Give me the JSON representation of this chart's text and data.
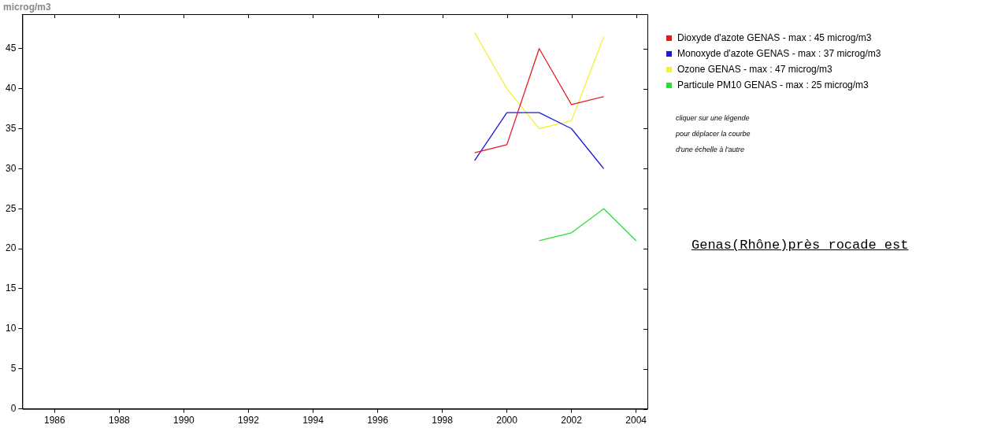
{
  "chart_data": {
    "type": "line",
    "title": "Genas(Rhône)près rocade est",
    "ylabel": "microg/m3",
    "annotations": [
      "cliquer sur une légende",
      "pour déplacer la courbe",
      "d'une échelle à l'autre"
    ],
    "x": [
      1999,
      2000,
      2001,
      2002,
      2003,
      2004
    ],
    "series": [
      {
        "name": "Dioxyde d'azote  GENAS - max : 45 microg/m3",
        "color": "#e8191e",
        "values": [
          32,
          33,
          45,
          38,
          39,
          null
        ]
      },
      {
        "name": "Monoxyde d'azote  GENAS - max : 37 microg/m3",
        "color": "#1a1ad8",
        "values": [
          31,
          37,
          37,
          35,
          30,
          null
        ]
      },
      {
        "name": "Ozone  GENAS - max : 47 microg/m3",
        "color": "#f5f03c",
        "values": [
          47,
          40,
          35,
          36,
          46.5,
          null
        ]
      },
      {
        "name": "Particule PM10  GENAS - max : 25 microg/m3",
        "color": "#2ee02e",
        "values": [
          null,
          null,
          21,
          22,
          25,
          21
        ]
      }
    ],
    "xlim": [
      1985,
      2004.35
    ],
    "xticks": [
      1986,
      1988,
      1990,
      1992,
      1994,
      1996,
      1998,
      2000,
      2002,
      2004
    ],
    "ylim": [
      0,
      49.3
    ],
    "yticks": [
      0,
      5,
      10,
      15,
      20,
      25,
      30,
      35,
      40,
      45
    ],
    "grid": false,
    "legend": "top right",
    "marker": "none",
    "line_style": "solid"
  }
}
